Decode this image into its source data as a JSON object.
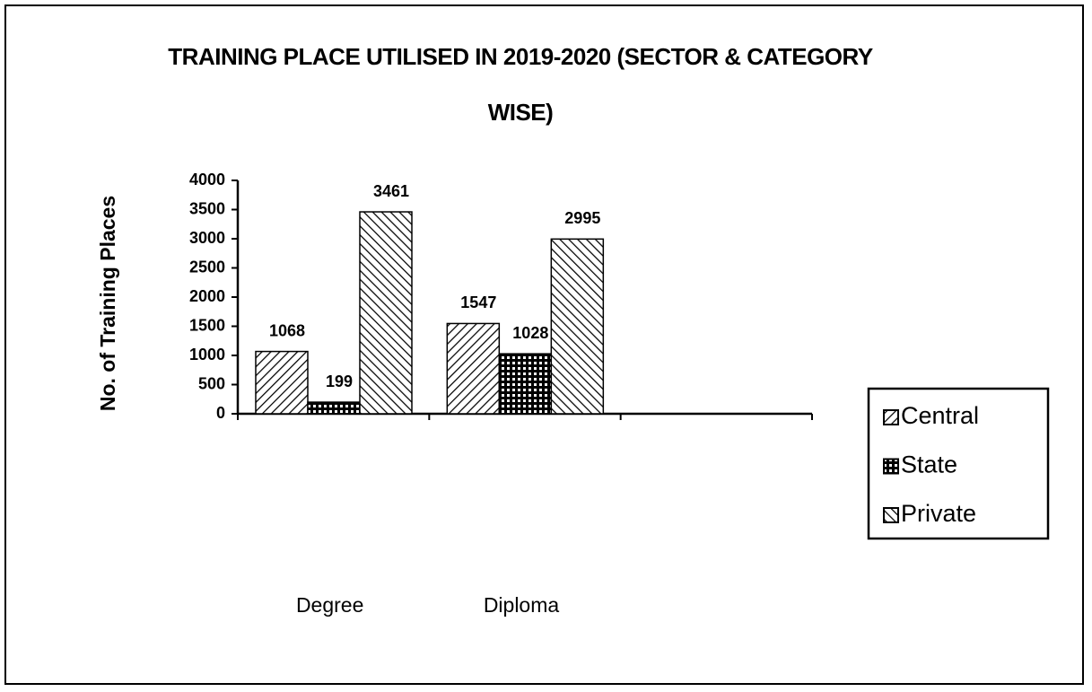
{
  "chart_data": {
    "type": "bar",
    "title": "TRAINING PLACE UTILISED IN 2019-2020 (SECTOR & CATEGORY WISE)",
    "y_label": "No. of Training Places",
    "categories": [
      "Degree",
      "Diploma",
      null
    ],
    "series": [
      {
        "name": "Central",
        "color": "#000000",
        "pattern": "forward-hatch",
        "values": [
          1068,
          1547,
          null
        ]
      },
      {
        "name": "State",
        "color": "#000000",
        "pattern": "dots",
        "values": [
          199,
          1028,
          null
        ]
      },
      {
        "name": "Private",
        "color": "#000000",
        "pattern": "back-hatch",
        "values": [
          3461,
          2995,
          null
        ]
      }
    ],
    "ylim": [
      0,
      4000
    ],
    "yticks": [
      0,
      500,
      1000,
      1500,
      2000,
      2500,
      3000,
      3500,
      4000
    ],
    "grid": false,
    "legend": "right"
  }
}
